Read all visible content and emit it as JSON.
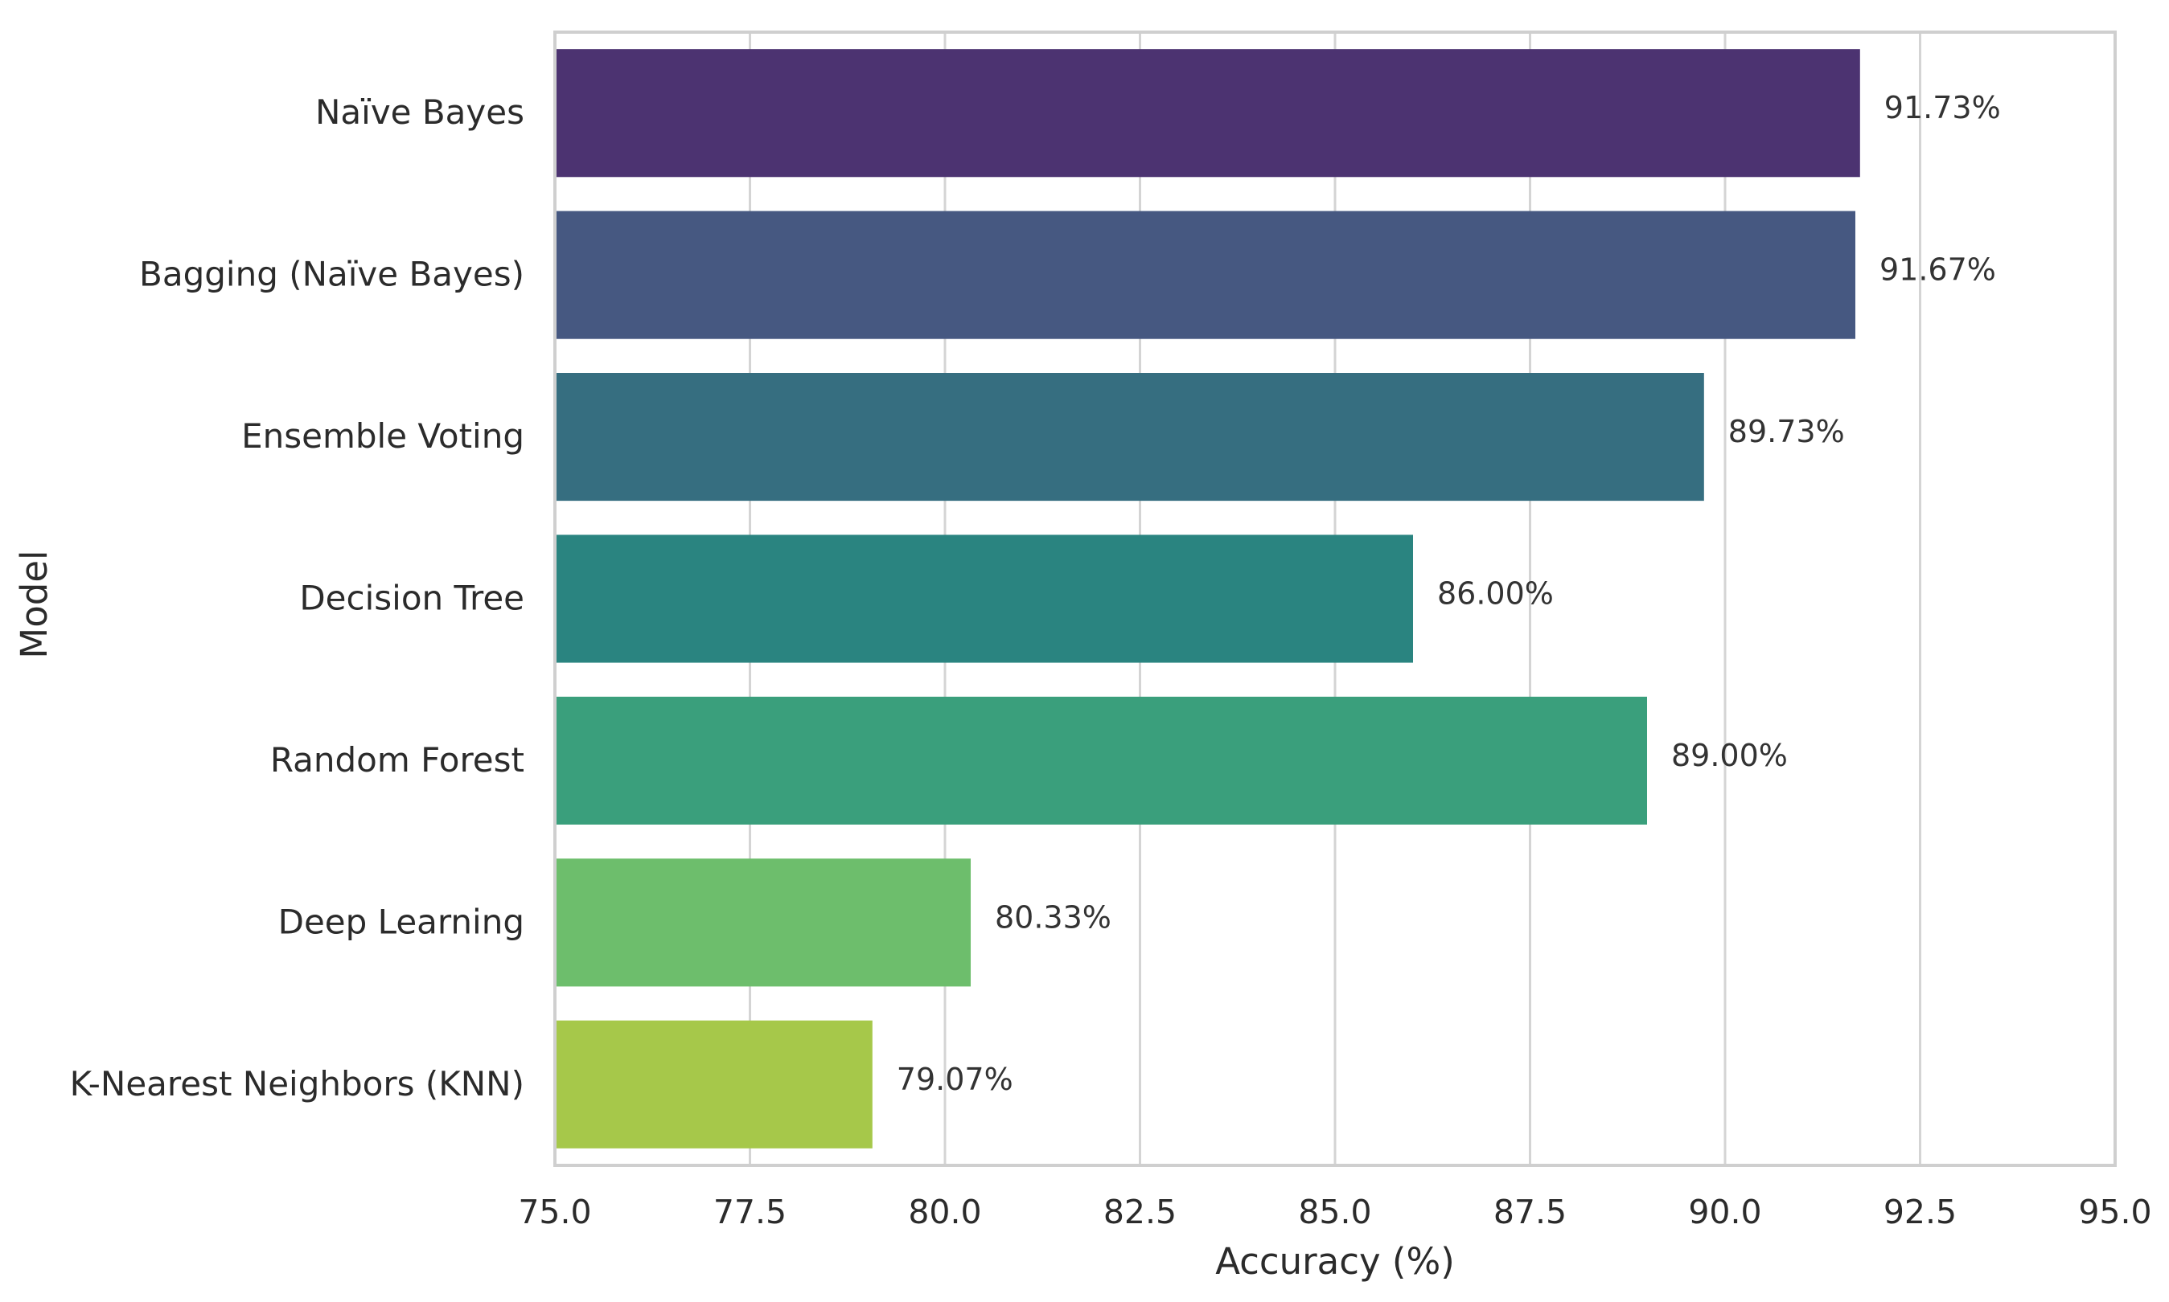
{
  "chart_data": {
    "type": "bar",
    "orientation": "horizontal",
    "title": "",
    "xlabel": "Accuracy (%)",
    "ylabel": "Model",
    "xlim": [
      75.0,
      95.0
    ],
    "xticks": [
      75.0,
      77.5,
      80.0,
      82.5,
      85.0,
      87.5,
      90.0,
      92.5,
      95.0
    ],
    "xtick_labels": [
      "75.0",
      "77.5",
      "80.0",
      "82.5",
      "85.0",
      "87.5",
      "90.0",
      "92.5",
      "95.0"
    ],
    "grid": true,
    "categories": [
      "Naïve Bayes",
      "Bagging (Naïve Bayes)",
      "Ensemble Voting",
      "Decision Tree",
      "Random Forest",
      "Deep Learning",
      "K-Nearest Neighbors (KNN)"
    ],
    "values": [
      91.73,
      91.67,
      89.73,
      86.0,
      89.0,
      80.33,
      79.07
    ],
    "data_labels": [
      "91.73%",
      "91.67%",
      "89.73%",
      "86.00%",
      "89.00%",
      "80.33%",
      "79.07%"
    ],
    "colors": [
      "#4c3371",
      "#465881",
      "#366e80",
      "#2a8480",
      "#3a9f7c",
      "#6dbe6c",
      "#a6c84a"
    ]
  }
}
